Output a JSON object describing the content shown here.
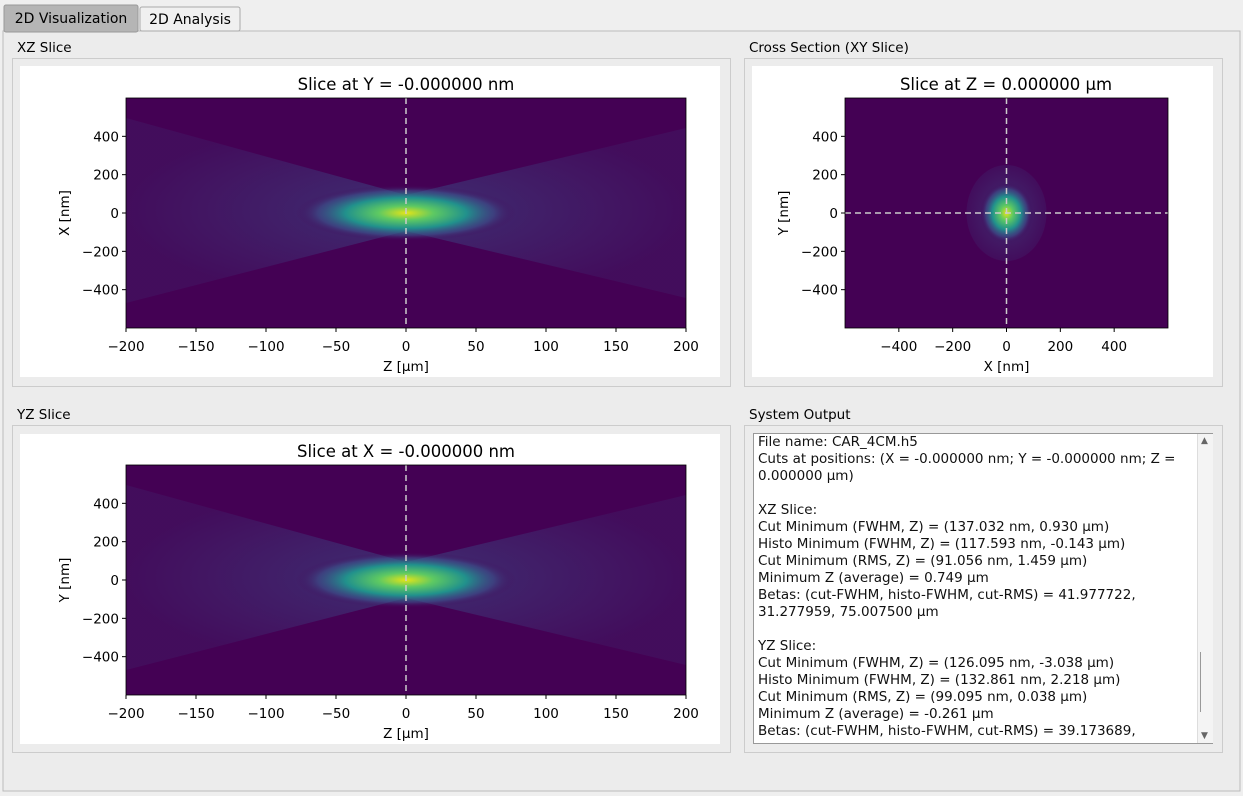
{
  "tabs": [
    "2D Visualization",
    "2D Analysis"
  ],
  "panels": {
    "xz": {
      "label": "XZ Slice",
      "plot": {
        "type": "heatmap",
        "title": "Slice at Y = -0.000000 nm",
        "xlabel": "Z [µm]",
        "ylabel": "X [nm]",
        "xlim": [
          -200,
          200
        ],
        "ylim": [
          -600,
          600
        ],
        "xticks": [
          {
            "value": -200,
            "label": "−200"
          },
          {
            "value": -150,
            "label": "−150"
          },
          {
            "value": -100,
            "label": "−100"
          },
          {
            "value": -50,
            "label": "−50"
          },
          0,
          50,
          100,
          150,
          200
        ],
        "yticks": [
          {
            "value": -400,
            "label": "−400"
          },
          {
            "value": -200,
            "label": "−200"
          },
          0,
          200,
          400
        ]
      }
    },
    "xy": {
      "label": "Cross Section (XY Slice)",
      "plot": {
        "type": "heatmap",
        "title": "Slice at Z = 0.000000 µm",
        "xlabel": "X [nm]",
        "ylabel": "Y [nm]",
        "xlim": [
          -600,
          600
        ],
        "ylim": [
          -600,
          600
        ],
        "xticks": [
          {
            "value": -400,
            "label": "−400"
          },
          {
            "value": -200,
            "label": "−200"
          },
          0,
          200,
          400
        ],
        "yticks": [
          {
            "value": -400,
            "label": "−400"
          },
          {
            "value": -200,
            "label": "−200"
          },
          0,
          200,
          400
        ]
      }
    },
    "yz": {
      "label": "YZ Slice",
      "plot": {
        "type": "heatmap",
        "title": "Slice at X = -0.000000 nm",
        "xlabel": "Z [µm]",
        "ylabel": "Y [nm]",
        "xlim": [
          -200,
          200
        ],
        "ylim": [
          -600,
          600
        ],
        "xticks": [
          {
            "value": -200,
            "label": "−200"
          },
          {
            "value": -150,
            "label": "−150"
          },
          {
            "value": -100,
            "label": "−100"
          },
          {
            "value": -50,
            "label": "−50"
          },
          0,
          50,
          100,
          150,
          200
        ],
        "yticks": [
          {
            "value": -400,
            "label": "−400"
          },
          {
            "value": -200,
            "label": "−200"
          },
          0,
          200,
          400
        ]
      }
    }
  },
  "output": {
    "label": "System Output",
    "blocks": [
      [
        "File name: CAR_4CM.h5",
        "Cuts at positions: (X = -0.000000 nm; Y = -0.000000 nm; Z = 0.000000 µm)"
      ],
      [
        "XZ Slice:",
        "Cut Minimum (FWHM, Z) = (137.032 nm, 0.930 µm)",
        "Histo Minimum (FWHM, Z) = (117.593 nm, -0.143 µm)",
        "Cut Minimum (RMS, Z) = (91.056 nm, 1.459 µm)",
        "Minimum Z (average) = 0.749 µm",
        "Betas: (cut-FWHM, histo-FWHM, cut-RMS) = 41.977722, 31.277959, 75.007500 µm"
      ],
      [
        "YZ Slice:",
        "Cut Minimum (FWHM, Z) = (126.095 nm, -3.038 µm)",
        "Histo Minimum (FWHM, Z) = (132.861 nm, 2.218 µm)",
        "Cut Minimum (RMS, Z) = (99.095 nm, 0.038 µm)",
        "Minimum Z (average) = -0.261 µm",
        "Betas: (cut-FWHM, histo-FWHM, cut-RMS) = 39.173689,"
      ]
    ]
  }
}
